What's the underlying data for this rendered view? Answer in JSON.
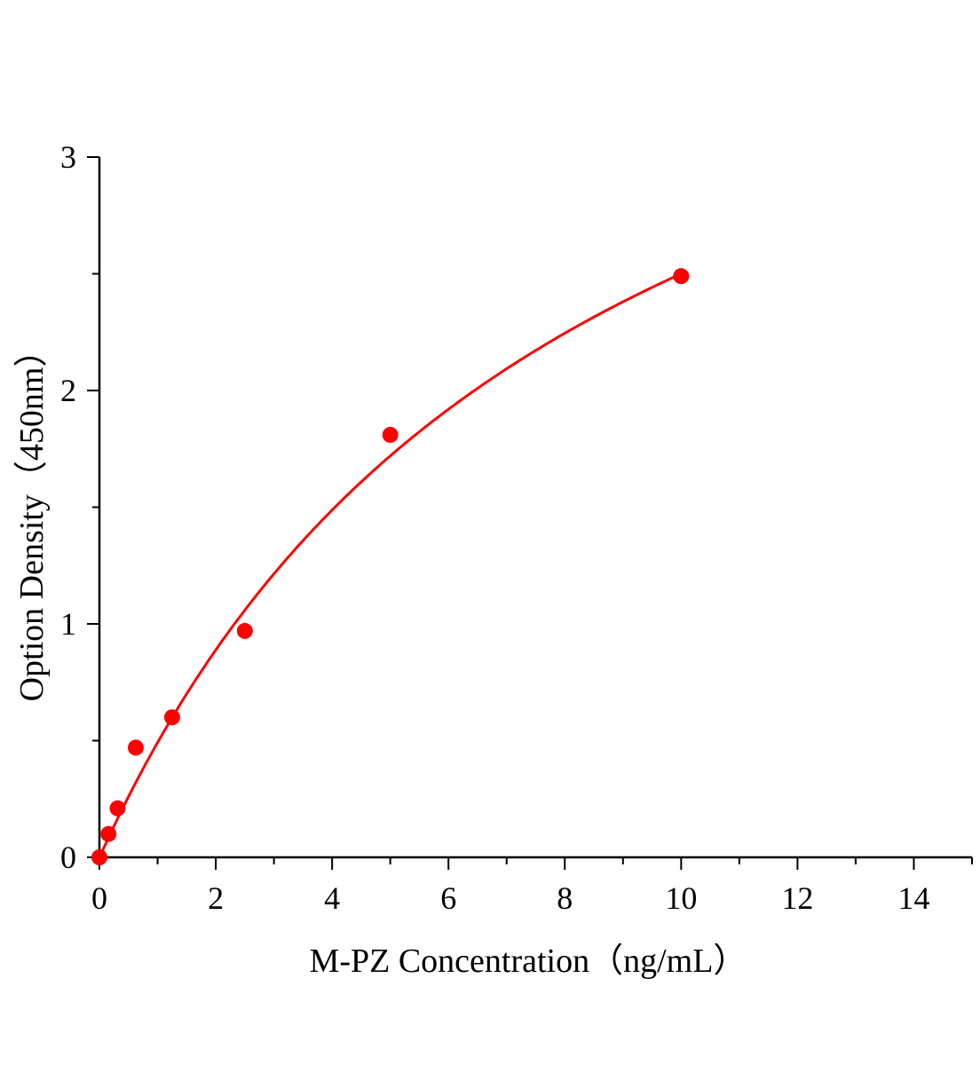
{
  "chart_data": {
    "type": "scatter",
    "title": "",
    "xlabel": "M-PZ Concentration（ng/mL）",
    "ylabel": "Option Density（450nm）",
    "xlim": [
      0,
      15
    ],
    "ylim": [
      0,
      3
    ],
    "xticks": [
      "0",
      "2",
      "4",
      "6",
      "8",
      "10",
      "12",
      "14"
    ],
    "yticks": [
      "0",
      "1",
      "2",
      "3"
    ],
    "grid": false,
    "legend": "none",
    "color": "#ff0000",
    "points": [
      {
        "x": 0,
        "y": 0
      },
      {
        "x": 0.156,
        "y": 0.1
      },
      {
        "x": 0.3125,
        "y": 0.21
      },
      {
        "x": 0.625,
        "y": 0.47
      },
      {
        "x": 1.25,
        "y": 0.6
      },
      {
        "x": 2.5,
        "y": 0.97
      },
      {
        "x": 5,
        "y": 1.81
      },
      {
        "x": 10,
        "y": 2.49
      }
    ],
    "fit_curve": {
      "model": "y = a*x/(b+x)",
      "a": 4.575,
      "b": 8.3,
      "x_range": [
        0,
        10
      ]
    }
  }
}
